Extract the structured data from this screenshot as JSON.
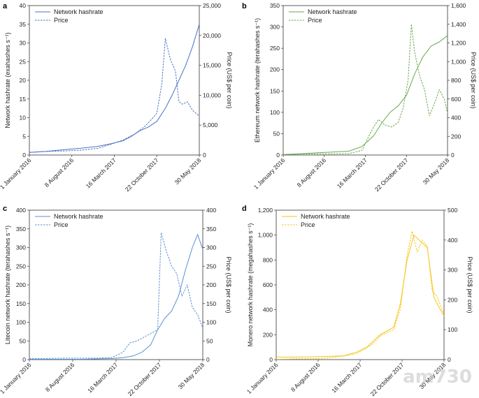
{
  "chart_data": [
    {
      "panel": "a",
      "type": "line",
      "color": "#4a72c4",
      "ylabel": "Network hashrate (exahashes s⁻¹)",
      "y2label": "Price (US$ per coin)",
      "ylim": [
        0,
        40
      ],
      "yticks": [
        0,
        5,
        10,
        15,
        20,
        25,
        30,
        35,
        40
      ],
      "ytick_labels": [
        "0",
        "5",
        "10",
        "15",
        "20",
        "25",
        "30",
        "35",
        "40"
      ],
      "y2lim": [
        0,
        25000
      ],
      "y2ticks": [
        0,
        5000,
        10000,
        15000,
        20000,
        25000
      ],
      "y2tick_labels": [
        "0",
        "5,000",
        "10,000",
        "15,000",
        "20,000",
        "25,000"
      ],
      "xticks": [
        0,
        0.25,
        0.5,
        0.75,
        1.0
      ],
      "xtick_labels": [
        "1 January 2016",
        "8 August 2016",
        "16 March 2017",
        "22 October 2017",
        "30 May 2018"
      ],
      "series": [
        {
          "name": "Network hashrate",
          "axis": "left",
          "style": "solid",
          "x": [
            0,
            0.1,
            0.2,
            0.3,
            0.4,
            0.48,
            0.55,
            0.6,
            0.65,
            0.7,
            0.75,
            0.8,
            0.84,
            0.88,
            0.92,
            0.96,
            1.0
          ],
          "y": [
            0.7,
            1.0,
            1.4,
            1.8,
            2.3,
            3.0,
            3.8,
            5.0,
            6.5,
            7.5,
            9.0,
            12.5,
            16.0,
            20.0,
            24.0,
            29.0,
            35.0
          ]
        },
        {
          "name": "Price",
          "axis": "right",
          "style": "dashed",
          "x": [
            0,
            0.1,
            0.2,
            0.3,
            0.4,
            0.48,
            0.55,
            0.62,
            0.68,
            0.72,
            0.75,
            0.78,
            0.8,
            0.83,
            0.86,
            0.88,
            0.9,
            0.93,
            0.96,
            1.0
          ],
          "y": [
            430,
            600,
            680,
            800,
            1100,
            1800,
            2500,
            3500,
            4800,
            6000,
            7000,
            12000,
            19500,
            16000,
            14000,
            9000,
            8500,
            8900,
            7500,
            6500
          ]
        }
      ],
      "legend": "top-left"
    },
    {
      "panel": "b",
      "type": "line",
      "color": "#6aa84f",
      "ylabel": "Ethereum network hashrate (terahashes s⁻¹)",
      "y2label": "Price (US$ per coin)",
      "ylim": [
        0,
        350
      ],
      "yticks": [
        0,
        50,
        100,
        150,
        200,
        250,
        300,
        350
      ],
      "ytick_labels": [
        "0",
        "50",
        "100",
        "150",
        "200",
        "250",
        "300",
        "350"
      ],
      "y2lim": [
        0,
        1600
      ],
      "y2ticks": [
        0,
        200,
        400,
        600,
        800,
        1000,
        1200,
        1400,
        1600
      ],
      "y2tick_labels": [
        "0",
        "200",
        "400",
        "600",
        "800",
        "1,000",
        "1,200",
        "1,400",
        "1,600"
      ],
      "xticks": [
        0,
        0.25,
        0.5,
        0.75,
        1.0
      ],
      "xtick_labels": [
        "1 January 2016",
        "8 August 2016",
        "16 March 2017",
        "22 October 2017",
        "30 May 2018"
      ],
      "series": [
        {
          "name": "Network hashrate",
          "axis": "left",
          "style": "solid",
          "x": [
            0,
            0.1,
            0.2,
            0.3,
            0.4,
            0.48,
            0.55,
            0.6,
            0.65,
            0.7,
            0.75,
            0.8,
            0.85,
            0.9,
            0.95,
            1.0
          ],
          "y": [
            1,
            3,
            5,
            7,
            9,
            20,
            45,
            75,
            100,
            115,
            140,
            190,
            230,
            255,
            265,
            280
          ]
        },
        {
          "name": "Price",
          "axis": "right",
          "style": "dashed",
          "x": [
            0,
            0.1,
            0.2,
            0.3,
            0.4,
            0.48,
            0.52,
            0.55,
            0.58,
            0.62,
            0.66,
            0.7,
            0.73,
            0.76,
            0.78,
            0.8,
            0.83,
            0.86,
            0.89,
            0.92,
            0.95,
            0.98,
            1.0
          ],
          "y": [
            5,
            10,
            12,
            12,
            15,
            50,
            200,
            300,
            380,
            320,
            300,
            350,
            500,
            800,
            1400,
            1100,
            850,
            700,
            420,
            550,
            700,
            600,
            450
          ]
        }
      ],
      "legend": "top-left"
    },
    {
      "panel": "c",
      "type": "line",
      "color": "#5b8fd1",
      "ylabel": "Litecoin network hashrate (terahashes s⁻¹)",
      "y2label": "Price (US$ per coin)",
      "ylim": [
        0,
        400
      ],
      "yticks": [
        0,
        50,
        100,
        150,
        200,
        250,
        300,
        350,
        400
      ],
      "ytick_labels": [
        "0",
        "50",
        "100",
        "150",
        "200",
        "250",
        "300",
        "350",
        "400"
      ],
      "y2lim": [
        0,
        400
      ],
      "y2ticks": [
        0,
        50,
        100,
        150,
        200,
        250,
        300,
        350,
        400
      ],
      "y2tick_labels": [
        "0",
        "50",
        "100",
        "150",
        "200",
        "250",
        "300",
        "350",
        "400"
      ],
      "xticks": [
        0,
        0.25,
        0.5,
        0.75,
        1.0
      ],
      "xtick_labels": [
        "1 January 2016",
        "8 August 2016",
        "16 March 2017",
        "22 October 2017",
        "30 May 2018"
      ],
      "series": [
        {
          "name": "Network hashrate",
          "axis": "left",
          "style": "solid",
          "x": [
            0,
            0.1,
            0.2,
            0.3,
            0.4,
            0.48,
            0.54,
            0.6,
            0.65,
            0.7,
            0.74,
            0.78,
            0.82,
            0.86,
            0.9,
            0.94,
            0.97,
            1.0
          ],
          "y": [
            1,
            1,
            1,
            1,
            2,
            3,
            5,
            10,
            20,
            40,
            80,
            110,
            130,
            170,
            240,
            300,
            335,
            295
          ]
        },
        {
          "name": "Price",
          "axis": "right",
          "style": "dashed",
          "x": [
            0,
            0.1,
            0.2,
            0.3,
            0.4,
            0.48,
            0.54,
            0.58,
            0.62,
            0.66,
            0.7,
            0.74,
            0.76,
            0.79,
            0.82,
            0.85,
            0.88,
            0.91,
            0.94,
            0.97,
            1.0
          ],
          "y": [
            3,
            3,
            4,
            4,
            4,
            6,
            20,
            45,
            50,
            60,
            70,
            80,
            340,
            290,
            250,
            230,
            170,
            200,
            140,
            120,
            85
          ]
        }
      ],
      "legend": "top-left"
    },
    {
      "panel": "d",
      "type": "line",
      "color": "#f5c518",
      "ylabel": "Monero network hashrate (megahashes s⁻¹)",
      "y2label": "Price (US$ per coin)",
      "ylim": [
        0,
        1200
      ],
      "yticks": [
        0,
        200,
        400,
        600,
        800,
        1000,
        1200
      ],
      "ytick_labels": [
        "0",
        "200",
        "400",
        "600",
        "800",
        "1,000",
        "1,200"
      ],
      "y2lim": [
        0,
        500
      ],
      "y2ticks": [
        0,
        100,
        200,
        300,
        400,
        500
      ],
      "y2tick_labels": [
        "0",
        "100",
        "200",
        "300",
        "400",
        "500"
      ],
      "xticks": [
        0,
        0.25,
        0.5,
        0.75,
        1.0
      ],
      "xtick_labels": [
        "1 January 2016",
        "8 August 2016",
        "16 March 2017",
        "22 October 2017",
        "30 May 2018"
      ],
      "series": [
        {
          "name": "Network hashrate",
          "axis": "left",
          "style": "solid",
          "x": [
            0,
            0.1,
            0.2,
            0.3,
            0.4,
            0.48,
            0.54,
            0.58,
            0.62,
            0.66,
            0.7,
            0.74,
            0.78,
            0.82,
            0.86,
            0.9,
            0.94,
            0.97,
            1.0
          ],
          "y": [
            20,
            20,
            22,
            25,
            30,
            60,
            100,
            150,
            200,
            230,
            260,
            450,
            800,
            1000,
            950,
            900,
            500,
            420,
            350
          ]
        },
        {
          "name": "Price",
          "axis": "right",
          "style": "dashed",
          "x": [
            0,
            0.1,
            0.2,
            0.3,
            0.4,
            0.48,
            0.54,
            0.58,
            0.62,
            0.66,
            0.7,
            0.74,
            0.78,
            0.81,
            0.84,
            0.87,
            0.9,
            0.93,
            0.96,
            1.0
          ],
          "y": [
            1,
            2,
            3,
            5,
            12,
            20,
            40,
            55,
            80,
            90,
            100,
            170,
            350,
            430,
            360,
            400,
            380,
            230,
            210,
            150
          ]
        }
      ],
      "legend": "top-left"
    }
  ],
  "watermark": {
    "text": "am730"
  }
}
